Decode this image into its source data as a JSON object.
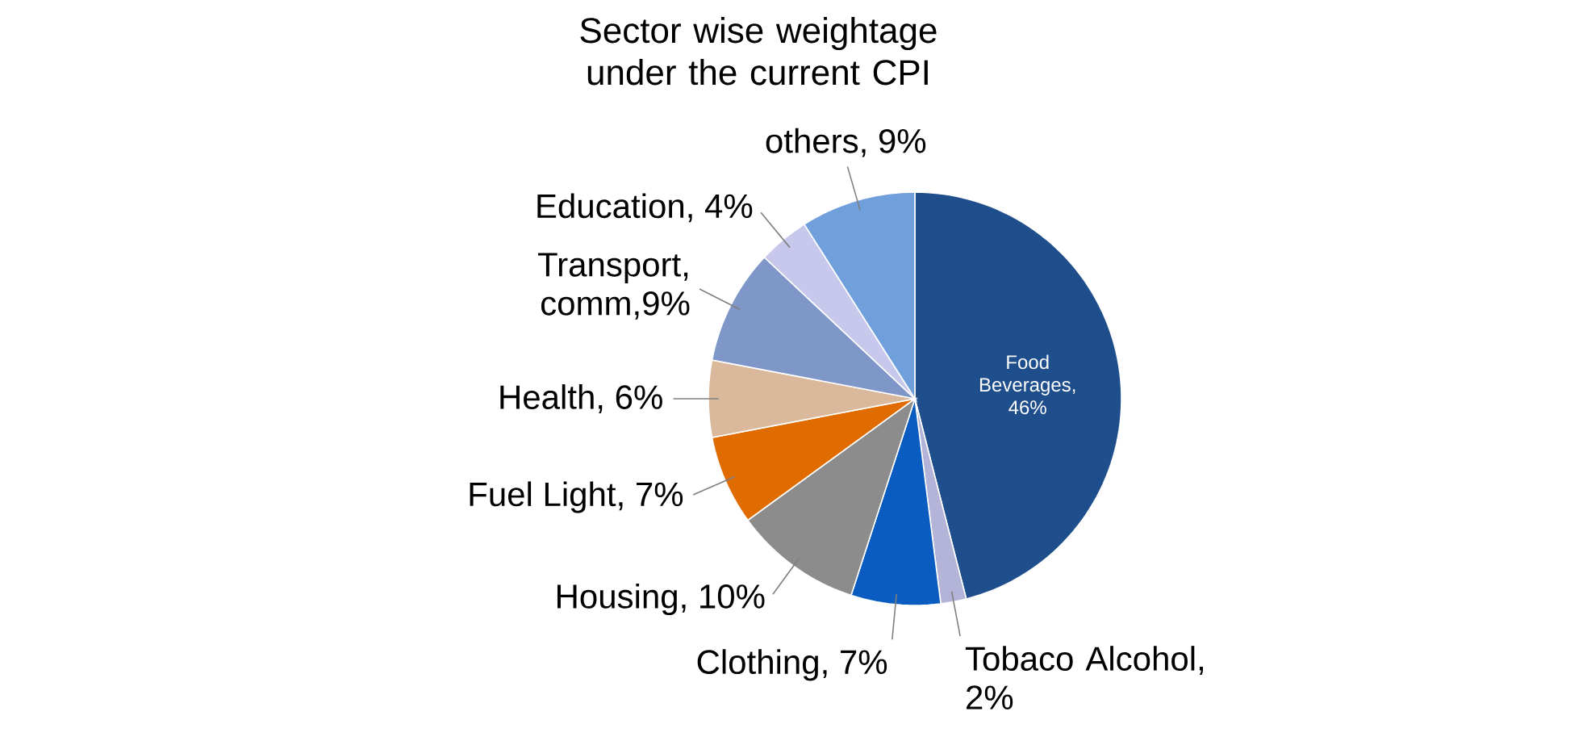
{
  "chart_data": {
    "type": "pie",
    "title": "Sector wise weightage under the current CPI",
    "categories": [
      "Food Beverages, 46%",
      "Tobaco Alcohol, 2%",
      "Clothing, 7%",
      "Housing, 10%",
      "Fuel Light, 7%",
      "Health, 6%",
      "Transport, comm,9%",
      "Education, 4%",
      "others, 9%"
    ],
    "values": [
      46,
      2,
      7,
      10,
      7,
      6,
      9,
      4,
      9
    ],
    "colors": [
      "#1f4e8c",
      "#b4b4d8",
      "#0a5cc0",
      "#8c8c8c",
      "#e06c00",
      "#d9b89c",
      "#7f96c8",
      "#c8c8ec",
      "#6fa0dc"
    ]
  }
}
